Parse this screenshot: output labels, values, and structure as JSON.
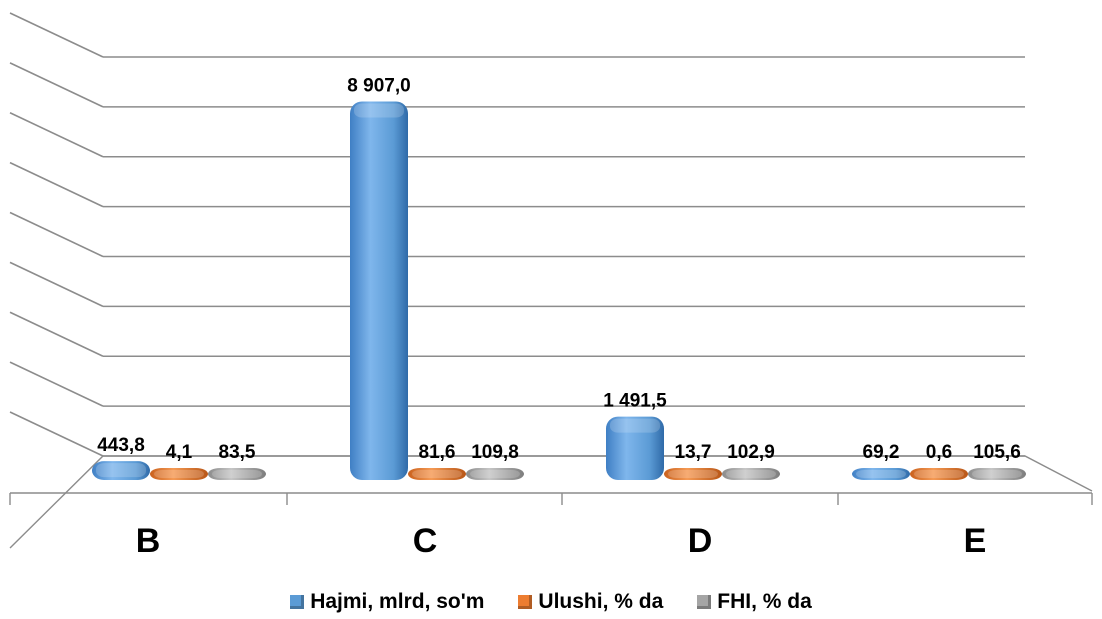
{
  "chart_data": {
    "type": "bar",
    "categories": [
      "B",
      "C",
      "D",
      "E"
    ],
    "series": [
      {
        "name": "Hajmi, mlrd, so'm",
        "values": [
          443.8,
          8907.0,
          1491.5,
          69.2
        ],
        "labels": [
          "443,8",
          "8 907,0",
          "1 491,5",
          "69,2"
        ],
        "color": "#5b9bd5"
      },
      {
        "name": "Ulushi, % da",
        "values": [
          4.1,
          81.6,
          13.7,
          0.6
        ],
        "labels": [
          "4,1",
          "81,6",
          "13,7",
          "0,6"
        ],
        "color": "#ed7d31"
      },
      {
        "name": "FHI, % da",
        "values": [
          83.5,
          109.8,
          102.9,
          105.6
        ],
        "labels": [
          "83,5",
          "109,8",
          "102,9",
          "105,6"
        ],
        "color": "#a5a5a5"
      }
    ],
    "title": "",
    "xlabel": "",
    "ylabel": "",
    "ylim": [
      0,
      10000
    ],
    "grid": true,
    "legend_position": "bottom",
    "style": "3d-cylinder"
  }
}
